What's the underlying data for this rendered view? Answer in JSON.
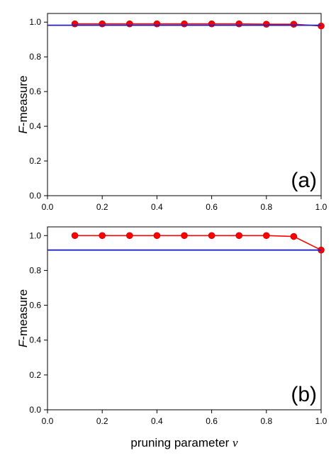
{
  "chart_data": [
    {
      "type": "line",
      "panel_label": "(a)",
      "ylabel": "F-measure",
      "ylabel_prefix": "F",
      "ylabel_suffix": "-measure",
      "xlabel": "",
      "xlim": [
        0.0,
        1.0
      ],
      "ylim": [
        0.0,
        1.05
      ],
      "xticks": [
        "0.0",
        "0.2",
        "0.4",
        "0.6",
        "0.8",
        "1.0"
      ],
      "yticks": [
        "0.0",
        "0.2",
        "0.4",
        "0.6",
        "0.8",
        "1.0"
      ],
      "grid": false,
      "series": [
        {
          "color": "#ff0000",
          "marker": "circle",
          "x": [
            0.1,
            0.2,
            0.3,
            0.4,
            0.5,
            0.6,
            0.7,
            0.8,
            0.9,
            1.0
          ],
          "y": [
            0.99,
            0.99,
            0.99,
            0.99,
            0.99,
            0.99,
            0.99,
            0.988,
            0.988,
            0.978
          ]
        },
        {
          "color": "#2020c8",
          "marker": "none",
          "x": [
            0.0,
            1.0
          ],
          "y": [
            0.982,
            0.982
          ]
        }
      ]
    },
    {
      "type": "line",
      "panel_label": "(b)",
      "ylabel": "F-measure",
      "ylabel_prefix": "F",
      "ylabel_suffix": "-measure",
      "xlabel": "pruning parameter ν",
      "xlabel_prefix": "pruning parameter ",
      "xlabel_symbol": "ν",
      "xlim": [
        0.0,
        1.0
      ],
      "ylim": [
        0.0,
        1.05
      ],
      "xticks": [
        "0.0",
        "0.2",
        "0.4",
        "0.6",
        "0.8",
        "1.0"
      ],
      "yticks": [
        "0.0",
        "0.2",
        "0.4",
        "0.6",
        "0.8",
        "1.0"
      ],
      "grid": false,
      "series": [
        {
          "color": "#ff0000",
          "marker": "circle",
          "x": [
            0.1,
            0.2,
            0.3,
            0.4,
            0.5,
            0.6,
            0.7,
            0.8,
            0.9,
            1.0
          ],
          "y": [
            1.0,
            1.0,
            1.0,
            1.0,
            1.0,
            1.0,
            1.0,
            1.0,
            0.995,
            0.917
          ]
        },
        {
          "color": "#2020c8",
          "marker": "none",
          "x": [
            0.0,
            1.0
          ],
          "y": [
            0.917,
            0.917
          ]
        }
      ]
    }
  ]
}
